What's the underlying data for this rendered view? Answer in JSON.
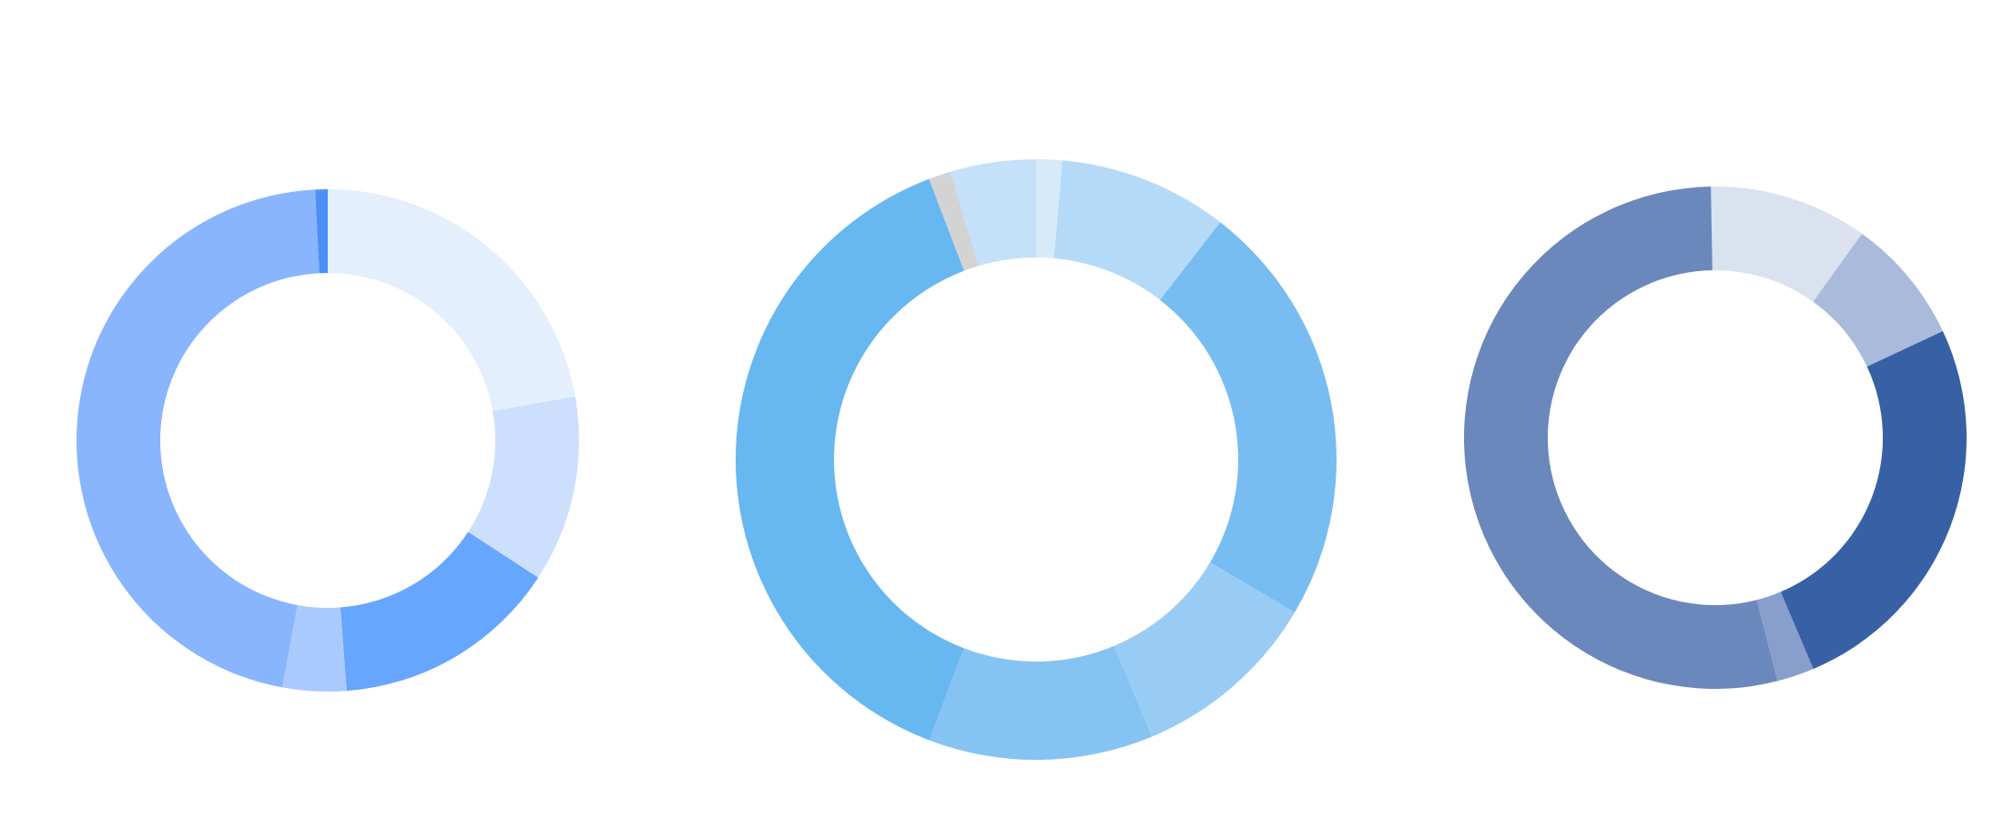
{
  "chart_data": [
    {
      "type": "pie",
      "title": "",
      "legend": "none",
      "slices": [
        {
          "value": 22.2,
          "color": "#e3effd"
        },
        {
          "value": 12.0,
          "color": "#cce0fd"
        },
        {
          "value": 14.6,
          "color": "#66a6fe"
        },
        {
          "value": 4.1,
          "color": "#aacafe"
        },
        {
          "value": 46.3,
          "color": "#88b5fe"
        },
        {
          "value": 0.8,
          "color": "#4d8ff6"
        }
      ]
    },
    {
      "type": "pie",
      "title": "",
      "legend": "none",
      "slices": [
        {
          "value": 1.4,
          "color": "#d7eafa"
        },
        {
          "value": 9.1,
          "color": "#b5daf8"
        },
        {
          "value": 23.0,
          "color": "#78bdf1"
        },
        {
          "value": 10.2,
          "color": "#99ccf4"
        },
        {
          "value": 12.1,
          "color": "#85c3f3"
        },
        {
          "value": 38.4,
          "color": "#67b7f0"
        },
        {
          "value": 1.2,
          "color": "#d3d3d3"
        },
        {
          "value": 4.6,
          "color": "#c4e1f9"
        }
      ]
    },
    {
      "type": "pie",
      "title": "",
      "legend": "none",
      "slices": [
        {
          "value": 10.2,
          "color": "#dae1ef"
        },
        {
          "value": 8.1,
          "color": "#a9badb"
        },
        {
          "value": 25.6,
          "color": "#3760a5"
        },
        {
          "value": 2.4,
          "color": "#889fcd"
        },
        {
          "value": 53.7,
          "color": "#6a88bb"
        }
      ]
    }
  ]
}
